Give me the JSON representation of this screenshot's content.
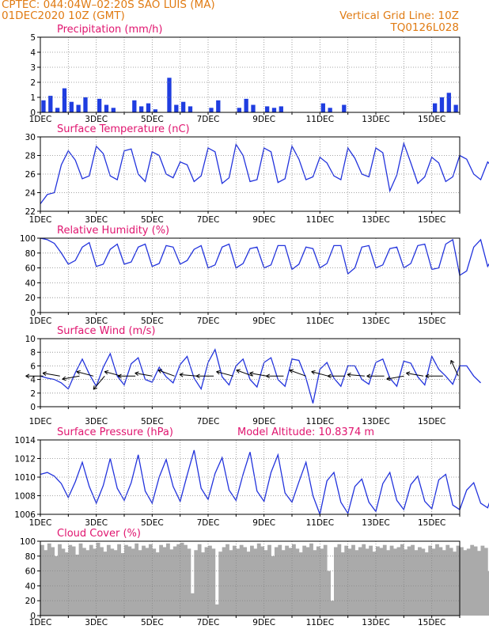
{
  "header": {
    "station": "CPTEC:   044:04W–02:20S   SAO LUIS (MA)",
    "datetime": "01DEC2020 10Z (GMT)",
    "grid_note": "Vertical Grid Line: 10Z",
    "code": "TQ0126L028"
  },
  "colors": {
    "header": "#e07b13",
    "title": "#e0156f",
    "line": "#2233dd",
    "bar": "#1f3de0",
    "cloud": "#aaaaaa",
    "grid": "#888888"
  },
  "x_ticks": [
    "1DEC",
    "3DEC",
    "5DEC",
    "7DEC",
    "9DEC",
    "11DEC",
    "13DEC",
    "15DEC"
  ],
  "chart_data": [
    {
      "type": "bar",
      "title": "Precipitation (mm/h)",
      "ylim": [
        0,
        5
      ],
      "yticks": [
        "0",
        "1",
        "2",
        "3",
        "4",
        "5"
      ],
      "x_start_day": 1,
      "step_hours": 6,
      "values": [
        0.8,
        1.1,
        0.3,
        1.6,
        0.7,
        0.5,
        1.0,
        0,
        0.9,
        0.5,
        0.3,
        0,
        0,
        0.8,
        0.4,
        0.6,
        0.2,
        0,
        2.3,
        0.5,
        0.7,
        0.4,
        0,
        0,
        0.3,
        0.8,
        0,
        0,
        0.3,
        0.9,
        0.5,
        0,
        0.4,
        0.3,
        0.4,
        0,
        0,
        0,
        0,
        0,
        0.6,
        0.3,
        0,
        0.5,
        0,
        0,
        0,
        0,
        0,
        0,
        0,
        0,
        0,
        0,
        0,
        0,
        0.6,
        1.0,
        1.3,
        0.5,
        0,
        0,
        0,
        0,
        0,
        0,
        0,
        1.7,
        0.6,
        0,
        0,
        0,
        0,
        0,
        0,
        0,
        0,
        0,
        0,
        0,
        0,
        0,
        0,
        0,
        0.4,
        0,
        0,
        0,
        0,
        0,
        0.4,
        0.7,
        0,
        1.0,
        0,
        0.5,
        1.4,
        0,
        0,
        0,
        0,
        0,
        0,
        0,
        0,
        0.4,
        0,
        0.9,
        0.5,
        1.0,
        0.3,
        0,
        0,
        0,
        0,
        0,
        0,
        0,
        0.9,
        1.7,
        1.4
      ]
    },
    {
      "type": "line",
      "title": "Surface Temperature (nC)",
      "ylim": [
        22,
        30
      ],
      "yticks": [
        "22",
        "24",
        "26",
        "28",
        "30"
      ],
      "x_start_day": 1,
      "step_hours": 6,
      "values": [
        22.8,
        23.8,
        24.0,
        27.0,
        28.5,
        27.5,
        25.5,
        25.8,
        29.0,
        28.2,
        25.8,
        25.4,
        28.5,
        28.7,
        26.0,
        25.2,
        28.4,
        28.0,
        26.0,
        25.6,
        27.3,
        27.0,
        25.2,
        25.8,
        28.8,
        28.4,
        25.0,
        25.6,
        29.2,
        28.0,
        25.2,
        25.4,
        28.8,
        28.4,
        25.1,
        25.5,
        29.0,
        27.6,
        25.4,
        25.7,
        27.8,
        27.2,
        25.8,
        25.4,
        28.8,
        27.7,
        26.0,
        25.7,
        28.8,
        28.3,
        24.2,
        25.9,
        29.3,
        27.2,
        25.0,
        25.7,
        27.8,
        27.2,
        25.2,
        25.7,
        28.0,
        27.6,
        26.0,
        25.4,
        27.3,
        26.5,
        24.7,
        25.5,
        29.9,
        28.4,
        25.4,
        26.3
      ]
    },
    {
      "type": "line",
      "title": "Relative Humidity (%)",
      "ylim": [
        0,
        100
      ],
      "yticks": [
        "0",
        "20",
        "40",
        "60",
        "80",
        "100"
      ],
      "x_start_day": 1,
      "step_hours": 6,
      "values": [
        100,
        98,
        93,
        80,
        65,
        70,
        88,
        94,
        62,
        65,
        85,
        92,
        65,
        68,
        88,
        92,
        62,
        66,
        90,
        88,
        65,
        70,
        85,
        90,
        60,
        64,
        88,
        92,
        60,
        66,
        86,
        88,
        60,
        64,
        90,
        90,
        58,
        65,
        88,
        86,
        60,
        66,
        90,
        90,
        52,
        60,
        88,
        90,
        60,
        64,
        86,
        88,
        60,
        66,
        90,
        92,
        58,
        60,
        92,
        98,
        50,
        56,
        88,
        98,
        62,
        78
      ]
    },
    {
      "type": "line",
      "title": "Surface Wind (m/s)",
      "ylim": [
        0,
        10
      ],
      "yticks": [
        "0",
        "2",
        "4",
        "6",
        "8",
        "10"
      ],
      "x_start_day": 1,
      "step_hours": 6,
      "values": [
        4.5,
        4.2,
        4.0,
        3.5,
        2.6,
        5.0,
        7.0,
        4.8,
        3.0,
        5.8,
        7.8,
        4.5,
        3.2,
        6.3,
        7.2,
        4.0,
        3.6,
        5.8,
        4.4,
        3.5,
        6.2,
        7.4,
        4.2,
        2.6,
        6.5,
        8.4,
        4.4,
        3.2,
        6.0,
        7.0,
        4.0,
        2.9,
        6.5,
        7.2,
        4.0,
        3.0,
        7.0,
        6.8,
        4.2,
        0.5,
        5.5,
        6.5,
        4.2,
        3.0,
        6.0,
        6.0,
        4.0,
        3.3,
        6.5,
        7.0,
        4.2,
        3.0,
        6.7,
        6.4,
        4.4,
        3.2,
        7.4,
        5.5,
        4.5,
        3.3,
        6.0,
        6.0,
        4.5,
        3.5
      ]
    },
    {
      "type": "line",
      "title": "Surface Pressure (hPa)",
      "annotation": "Model Altitude: 10.8374 m",
      "ylim": [
        1006,
        1014
      ],
      "yticks": [
        "1006",
        "1008",
        "1010",
        "1012",
        "1014"
      ],
      "x_start_day": 1,
      "step_hours": 6,
      "values": [
        1010.3,
        1010.5,
        1010.1,
        1009.3,
        1007.8,
        1009.5,
        1011.6,
        1009.0,
        1007.2,
        1009.1,
        1012.0,
        1008.8,
        1007.5,
        1009.4,
        1012.4,
        1008.5,
        1007.2,
        1010.0,
        1011.9,
        1009.0,
        1007.4,
        1010.2,
        1012.9,
        1008.8,
        1007.6,
        1010.4,
        1012.1,
        1008.6,
        1007.5,
        1010.3,
        1012.7,
        1008.5,
        1007.4,
        1010.5,
        1012.4,
        1008.3,
        1007.3,
        1009.5,
        1011.6,
        1008.0,
        1006.0,
        1009.6,
        1010.5,
        1007.3,
        1006.1,
        1009.0,
        1009.8,
        1007.3,
        1006.3,
        1009.3,
        1010.5,
        1007.5,
        1006.5,
        1009.2,
        1010.1,
        1007.4,
        1006.6,
        1009.7,
        1010.3,
        1007.0,
        1006.5,
        1008.6,
        1009.4,
        1007.2,
        1006.7,
        1008.9
      ]
    },
    {
      "type": "bar",
      "title": "Cloud Cover (%)",
      "ylim": [
        0,
        100
      ],
      "yticks": [
        "0",
        "20",
        "40",
        "60",
        "80",
        "100"
      ],
      "x_start_day": 1,
      "step_hours": 3,
      "values": [
        95,
        88,
        97,
        92,
        80,
        96,
        90,
        85,
        95,
        93,
        82,
        97,
        91,
        88,
        95,
        90,
        98,
        92,
        86,
        95,
        90,
        88,
        96,
        84,
        95,
        93,
        90,
        97,
        88,
        94,
        91,
        96,
        90,
        85,
        95,
        92,
        97,
        89,
        93,
        96,
        98,
        95,
        90,
        30,
        88,
        96,
        85,
        92,
        94,
        90,
        15,
        86,
        92,
        96,
        88,
        94,
        90,
        95,
        92,
        86,
        94,
        90,
        97,
        93,
        88,
        95,
        80,
        92,
        95,
        88,
        94,
        91,
        96,
        90,
        85,
        94,
        92,
        97,
        88,
        93,
        90,
        95,
        60,
        20,
        92,
        96,
        85,
        94,
        90,
        95,
        88,
        92,
        96,
        90,
        94,
        86,
        93,
        91,
        95,
        88,
        94,
        90,
        92,
        96,
        89,
        93,
        95,
        88,
        92,
        90,
        85,
        94,
        90,
        96,
        92,
        88,
        95,
        91,
        86,
        94,
        92,
        88,
        90,
        95,
        93,
        87,
        94,
        91,
        60,
        92
      ]
    }
  ],
  "wind_arrows": [
    {
      "day": 1.1,
      "angle": 180
    },
    {
      "day": 1.7,
      "angle": 190
    },
    {
      "day": 2.4,
      "angle": 170
    },
    {
      "day": 2.9,
      "angle": 195
    },
    {
      "day": 3.3,
      "angle": 130
    },
    {
      "day": 3.9,
      "angle": 195
    },
    {
      "day": 4.4,
      "angle": 180
    },
    {
      "day": 5.0,
      "angle": 190
    },
    {
      "day": 5.8,
      "angle": 200
    },
    {
      "day": 6.6,
      "angle": 185
    },
    {
      "day": 7.2,
      "angle": 180
    },
    {
      "day": 7.9,
      "angle": 195
    },
    {
      "day": 8.6,
      "angle": 200
    },
    {
      "day": 9.1,
      "angle": 190
    },
    {
      "day": 9.7,
      "angle": 180
    },
    {
      "day": 10.5,
      "angle": 200
    },
    {
      "day": 11.3,
      "angle": 195
    },
    {
      "day": 11.9,
      "angle": 180
    },
    {
      "day": 12.6,
      "angle": 185
    },
    {
      "day": 13.3,
      "angle": 180
    },
    {
      "day": 14.0,
      "angle": 170
    },
    {
      "day": 14.7,
      "angle": 190
    },
    {
      "day": 15.4,
      "angle": 180
    },
    {
      "day": 15.95,
      "angle": 245
    }
  ]
}
